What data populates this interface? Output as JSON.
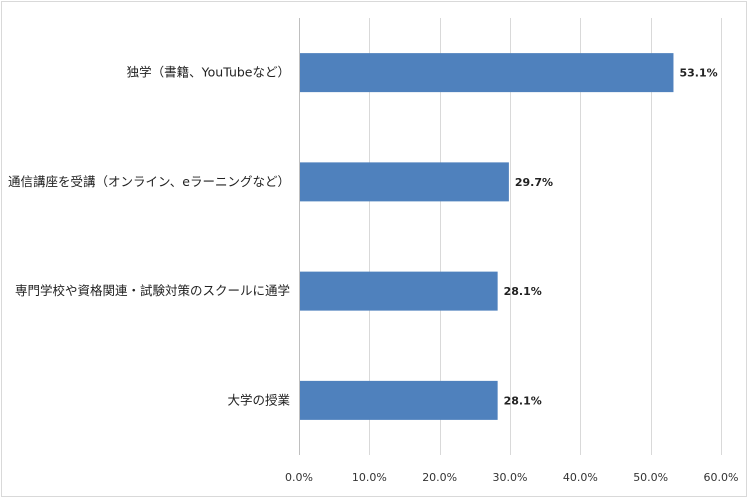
{
  "chart_data": {
    "type": "bar",
    "orientation": "horizontal",
    "categories": [
      "独学（書籍、YouTubeなど）",
      "通信講座を受講（オンライン、eラーニングなど）",
      "専門学校や資格関連・試験対策のスクールに通学",
      "大学の授業"
    ],
    "values": [
      53.1,
      29.7,
      28.1,
      28.1
    ],
    "value_labels": [
      "53.1%",
      "29.7%",
      "28.1%",
      "28.1%"
    ],
    "xlim": [
      0,
      60
    ],
    "ticks": [
      0,
      10,
      20,
      30,
      40,
      50,
      60
    ],
    "tick_labels": [
      "0.0%",
      "10.0%",
      "20.0%",
      "30.0%",
      "40.0%",
      "50.0%",
      "60.0%"
    ],
    "grid": true,
    "bar_color": "#4f81bd",
    "grid_color": "#d9d9d9"
  }
}
